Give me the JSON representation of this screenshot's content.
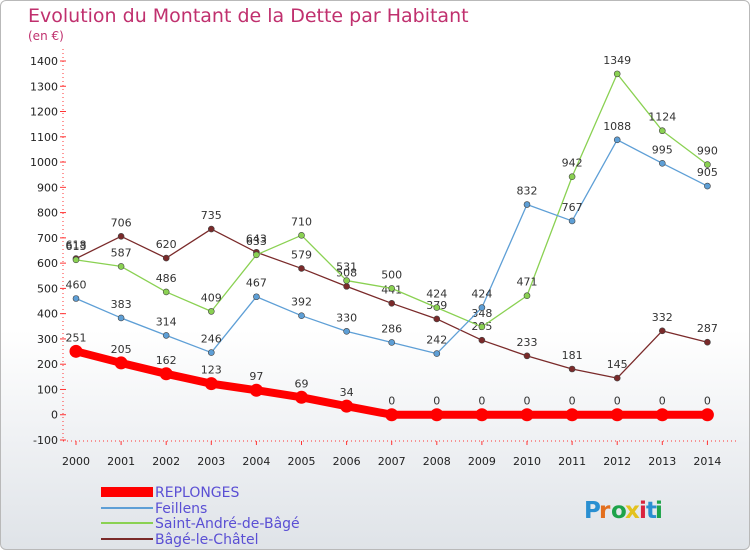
{
  "title": "Evolution du Montant de la Dette par Habitant",
  "subtitle": "(en €)",
  "logo": "Proxiti",
  "chart_data": {
    "type": "line",
    "x": [
      2000,
      2001,
      2002,
      2003,
      2004,
      2005,
      2006,
      2007,
      2008,
      2009,
      2010,
      2011,
      2012,
      2013,
      2014
    ],
    "ylim": [
      -100,
      1400
    ],
    "yticks": [
      -100,
      0,
      100,
      200,
      300,
      400,
      500,
      600,
      700,
      800,
      900,
      1000,
      1100,
      1200,
      1300,
      1400
    ],
    "grid": false,
    "legend": "bottom-left",
    "series": [
      {
        "name": "REPLONGES",
        "color": "#ff0000",
        "values": [
          251,
          205,
          162,
          123,
          97,
          69,
          34,
          0,
          0,
          0,
          0,
          0,
          0,
          0,
          0
        ]
      },
      {
        "name": "Feillens",
        "color": "#5e9fd6",
        "values": [
          460,
          383,
          314,
          246,
          467,
          392,
          330,
          286,
          242,
          424,
          832,
          767,
          1088,
          995,
          905
        ]
      },
      {
        "name": "Saint-André-de-Bâgé",
        "color": "#8ad152",
        "values": [
          613,
          587,
          486,
          409,
          633,
          710,
          531,
          500,
          424,
          348,
          471,
          942,
          1349,
          1124,
          990
        ]
      },
      {
        "name": "Bâgé-le-Châtel",
        "color": "#7a2a2a",
        "values": [
          618,
          706,
          620,
          735,
          643,
          579,
          508,
          441,
          379,
          295,
          233,
          181,
          145,
          332,
          287
        ]
      }
    ]
  }
}
